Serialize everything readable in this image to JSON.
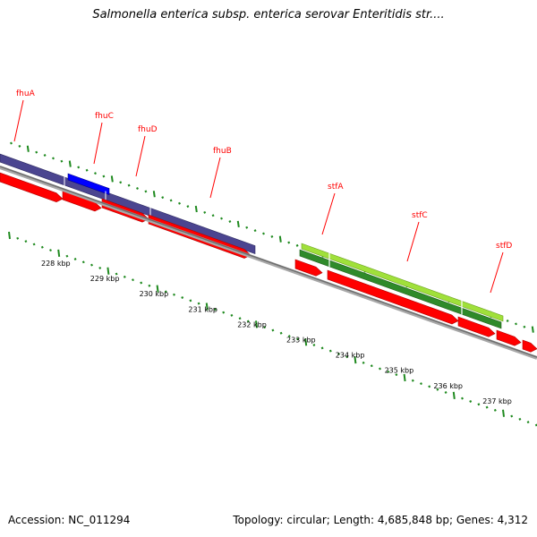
{
  "title": "Salmonella enterica subsp. enterica serovar Enteritidis str....",
  "footer": {
    "accession": "Accession: NC_011294",
    "summary": "Topology: circular; Length: 4,685,848 bp; Genes: 4,312"
  },
  "colors": {
    "cds": "#ff0000",
    "fhu_operon": "#4b4590",
    "fhuC_highlight": "#0000ff",
    "stf_light": "#a0e03a",
    "stf_dark": "#2f8a2a",
    "backbone": "#888888",
    "ticks": "#1f8a1f",
    "label_line": "#ff0000"
  },
  "gene_labels": [
    "fhuA",
    "fhuC",
    "fhuD",
    "fhuB",
    "stfA",
    "stfC",
    "stfD"
  ],
  "kbp_ticks": [
    "228 kbp",
    "229 kbp",
    "230 kbp",
    "231 kbp",
    "232 kbp",
    "233 kbp",
    "234 kbp",
    "235 kbp",
    "236 kbp",
    "237 kbp"
  ]
}
